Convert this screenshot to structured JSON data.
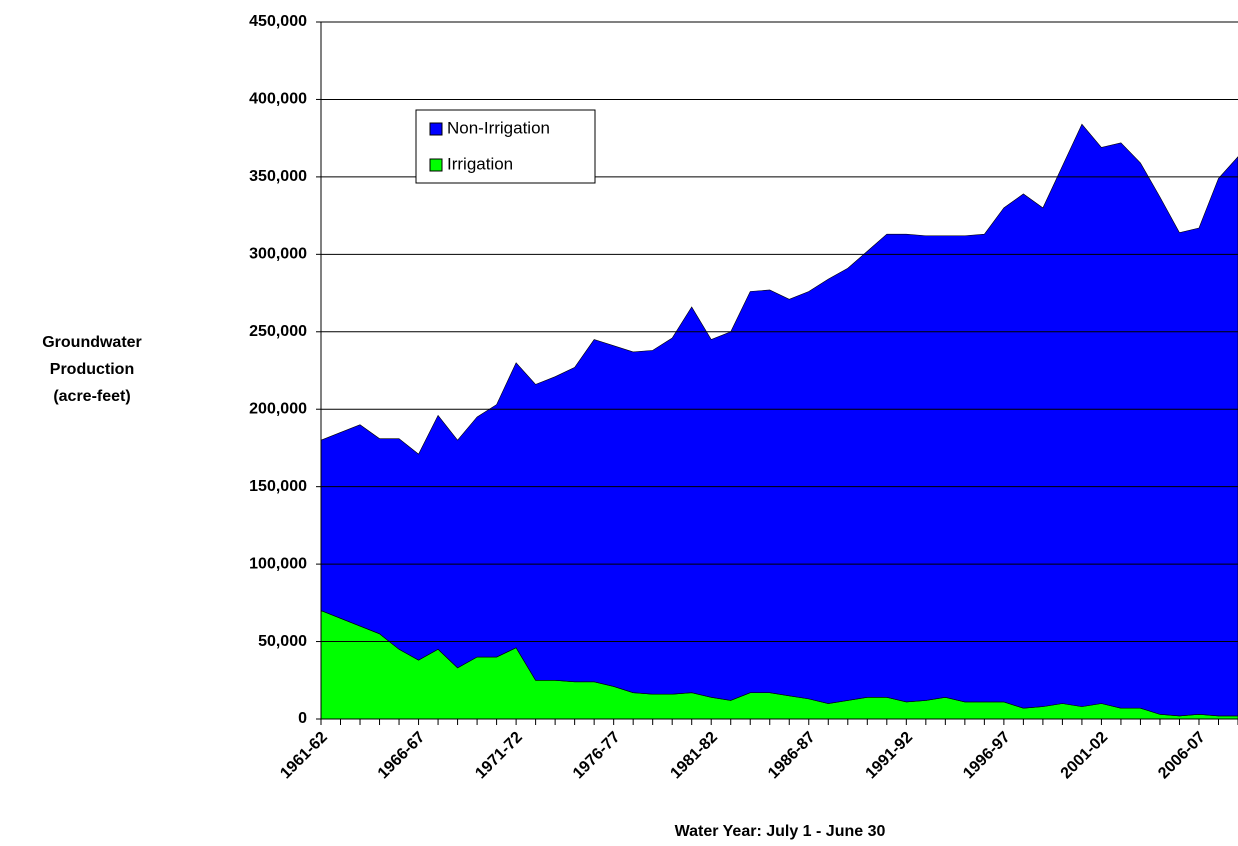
{
  "chart_data": {
    "type": "stacked_area",
    "ylabel": [
      "Groundwater",
      "Production",
      "(acre-feet)"
    ],
    "xlabel": "Water Year: July 1 - June 30",
    "categories": [
      "1961-62",
      null,
      null,
      null,
      null,
      "1966-67",
      null,
      null,
      null,
      null,
      "1971-72",
      null,
      null,
      null,
      null,
      "1976-77",
      null,
      null,
      null,
      null,
      "1981-82",
      null,
      null,
      null,
      null,
      "1986-87",
      null,
      null,
      null,
      null,
      "1991-92",
      null,
      null,
      null,
      null,
      "1996-97",
      null,
      null,
      null,
      null,
      "2001-02",
      null,
      null,
      null,
      null,
      "2006-07",
      null,
      null
    ],
    "series": [
      {
        "name": "Irrigation",
        "color": "#00ff00",
        "values": [
          70000,
          65000,
          60000,
          55000,
          45000,
          38000,
          45000,
          33000,
          40000,
          40000,
          46000,
          25000,
          25000,
          24000,
          24000,
          21000,
          17000,
          16000,
          16000,
          17000,
          14000,
          12000,
          17000,
          17000,
          15000,
          13000,
          10000,
          12000,
          14000,
          14000,
          11000,
          12000,
          14000,
          11000,
          11000,
          11000,
          7000,
          8000,
          10000,
          8000,
          10000,
          7000,
          7000,
          3000,
          2000,
          3000,
          2000,
          2000
        ]
      },
      {
        "name": "Non-Irrigation",
        "color": "#0000ff",
        "values": [
          110000,
          120000,
          130000,
          126000,
          136000,
          133000,
          151000,
          147000,
          155000,
          163000,
          184000,
          191000,
          196000,
          203000,
          221000,
          220000,
          220000,
          222000,
          230000,
          249000,
          231000,
          238000,
          259000,
          260000,
          256000,
          263000,
          274000,
          279000,
          288000,
          299000,
          302000,
          300000,
          298000,
          301000,
          302000,
          319000,
          332000,
          322000,
          347000,
          376000,
          359000,
          365000,
          352000,
          334000,
          312000,
          314000,
          347000,
          361000
        ]
      }
    ],
    "ylim": [
      0,
      450000
    ],
    "yticks": [
      {
        "value": 0,
        "label": "0"
      },
      {
        "value": 50000,
        "label": "50,000"
      },
      {
        "value": 100000,
        "label": "100,000"
      },
      {
        "value": 150000,
        "label": "150,000"
      },
      {
        "value": 200000,
        "label": "200,000"
      },
      {
        "value": 250000,
        "label": "250,000"
      },
      {
        "value": 300000,
        "label": "300,000"
      },
      {
        "value": 350000,
        "label": "350,000"
      },
      {
        "value": 400000,
        "label": "400,000"
      },
      {
        "value": 450000,
        "label": "450,000"
      }
    ],
    "grid": true
  }
}
